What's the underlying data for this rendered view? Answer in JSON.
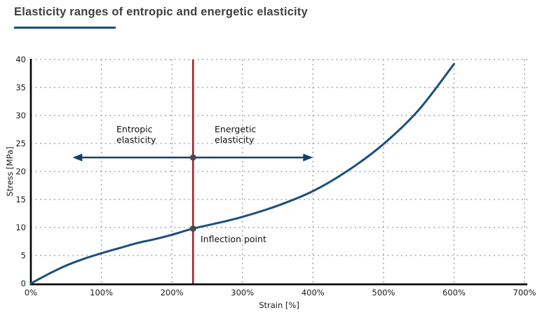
{
  "chart_data": {
    "type": "line",
    "title": "Elasticity ranges of entropic and energetic elasticity",
    "xlabel": "Strain [%]",
    "ylabel": "Stress [MPa]",
    "xlim": [
      0,
      700
    ],
    "ylim": [
      0,
      40
    ],
    "grid": "dotted gray, major only",
    "legend": "none",
    "x_tick_values": [
      0,
      100,
      200,
      300,
      400,
      500,
      600,
      700
    ],
    "x_tick_labels": [
      "0%",
      "100%",
      "200%",
      "300%",
      "400%",
      "500%",
      "600%",
      "700%"
    ],
    "y_tick_values": [
      0,
      5,
      10,
      15,
      20,
      25,
      30,
      35,
      40
    ],
    "series": [
      {
        "name": "stress-strain curve",
        "color": "#1d4e7e",
        "points": [
          [
            0,
            0
          ],
          [
            25,
            1.7
          ],
          [
            50,
            3.2
          ],
          [
            75,
            4.4
          ],
          [
            100,
            5.4
          ],
          [
            125,
            6.3
          ],
          [
            150,
            7.2
          ],
          [
            175,
            7.9
          ],
          [
            200,
            8.7
          ],
          [
            230,
            9.8
          ],
          [
            265,
            10.8
          ],
          [
            300,
            11.9
          ],
          [
            350,
            13.9
          ],
          [
            400,
            16.5
          ],
          [
            450,
            20.2
          ],
          [
            500,
            24.9
          ],
          [
            550,
            31.0
          ],
          [
            600,
            39.2
          ]
        ]
      }
    ],
    "inflection": {
      "x": 230,
      "y": 9.8,
      "label": "Inflection point",
      "dot_color": "#4a4a4a"
    },
    "vline": {
      "x": 230,
      "color": "#a62531"
    },
    "range_arrow": {
      "y": 22.5,
      "x_start": 59,
      "x_end": 400,
      "mid_x": 230,
      "color": "#14406d",
      "left_label": "Entropic\nelasticity",
      "right_label": "Energetic\nelasticity"
    },
    "annotations": {
      "entropic": "Entropic\nelasticity",
      "energetic": "Energetic\nelasticity",
      "inflection": "Inflection point"
    },
    "colors": {
      "title_text": "#3f3f3f",
      "title_underline": "#1b4f7f",
      "curve": "#1d4e7e",
      "arrow": "#14406d",
      "vline_red": "#a62531",
      "gridline": "#a0a0a0",
      "axis": "#000000",
      "dot": "#4a4a4a"
    }
  }
}
